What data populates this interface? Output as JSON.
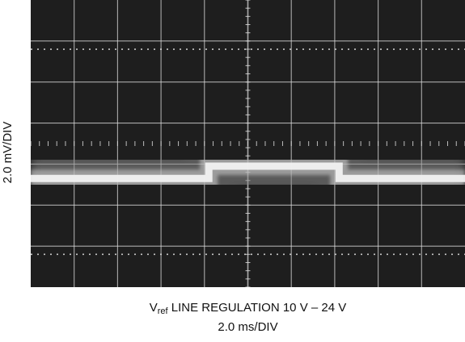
{
  "ylabel": "2.0 mV/DIV",
  "caption": {
    "v_main": "V",
    "v_sub": "ref",
    "line1_rest": " LINE REGULATION 10 V – 24 V",
    "line2": "2.0 ms/DIV"
  },
  "chart_data": {
    "type": "line",
    "title": "",
    "xlabel": "2.0 ms/DIV",
    "ylabel": "2.0 mV/DIV",
    "grid": true,
    "x_divisions": 10,
    "y_divisions": 7,
    "series": [
      {
        "x": [
          0,
          4.1,
          4.1,
          7.1,
          7.1,
          10
        ],
        "y": [
          -0.85,
          -0.85,
          -0.55,
          -0.55,
          -0.85,
          -0.85
        ]
      }
    ],
    "colors": {
      "screen_bg": "#1e1e1e",
      "grid": "#d9d9d9",
      "trace": "#f2f2f2",
      "trace_glow": "#8c8c8c"
    }
  }
}
